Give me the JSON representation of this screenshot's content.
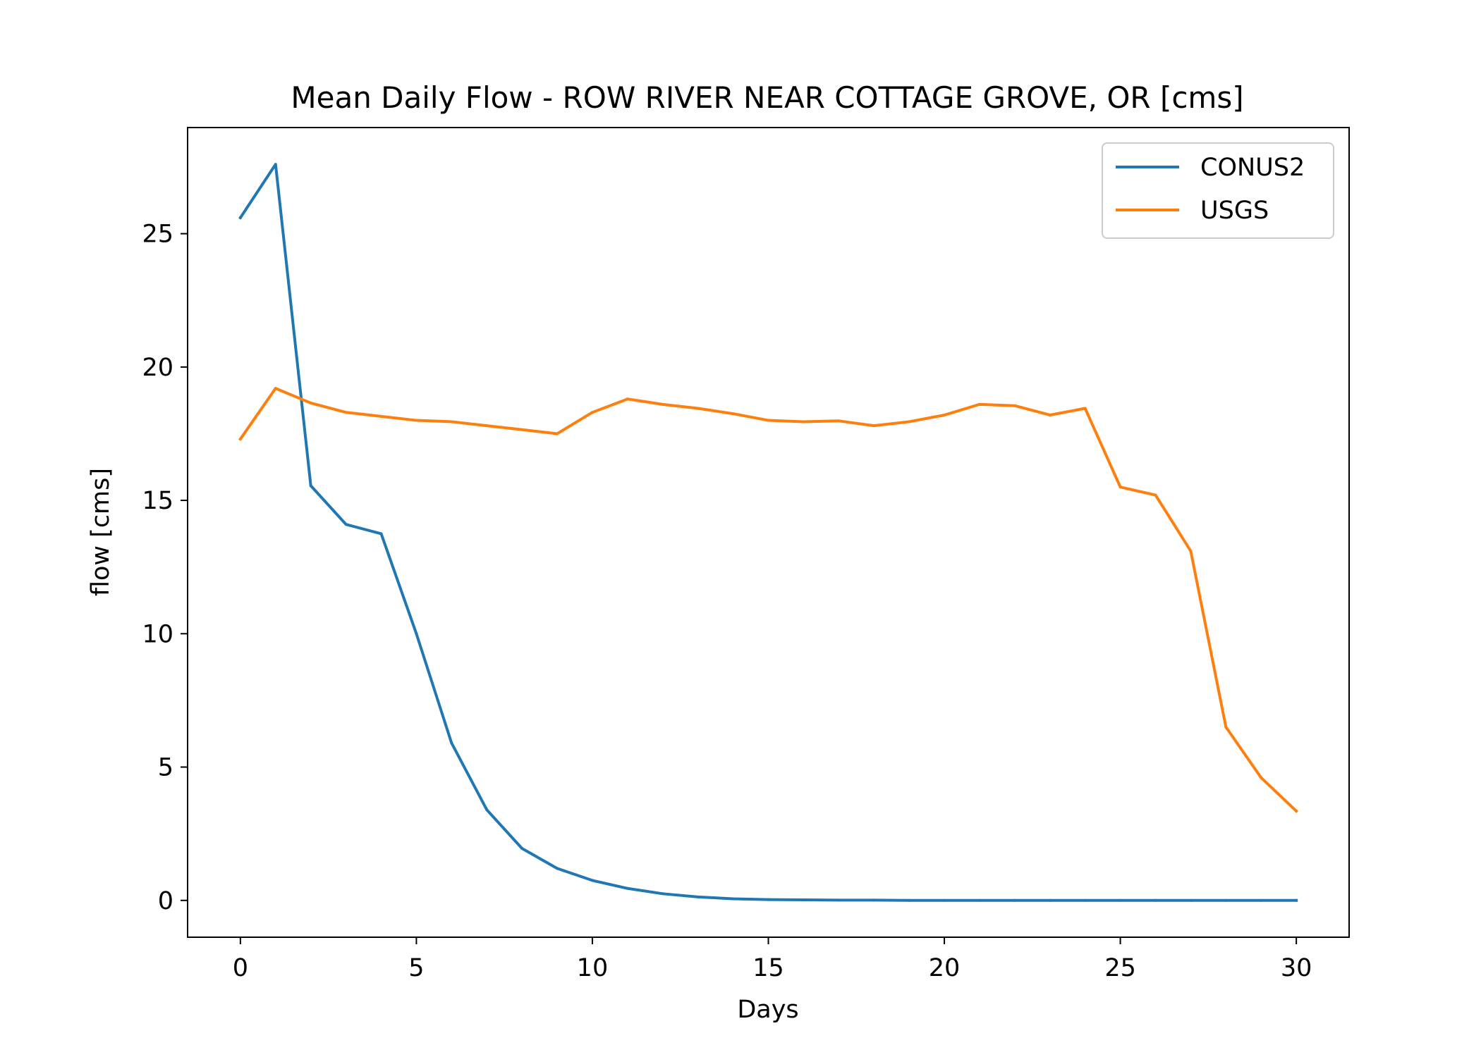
{
  "chart_data": {
    "type": "line",
    "title": "Mean Daily Flow - ROW RIVER NEAR COTTAGE GROVE, OR [cms]",
    "xlabel": "Days",
    "ylabel": "flow [cms]",
    "xlim": [
      -1.5,
      31.5
    ],
    "ylim": [
      -1.38,
      28.98
    ],
    "xticks": [
      0,
      5,
      10,
      15,
      20,
      25,
      30
    ],
    "yticks": [
      0,
      5,
      10,
      15,
      20,
      25
    ],
    "grid": false,
    "legend_position": "upper right",
    "x": [
      0,
      1,
      2,
      3,
      4,
      5,
      6,
      7,
      8,
      9,
      10,
      11,
      12,
      13,
      14,
      15,
      16,
      17,
      18,
      19,
      20,
      21,
      22,
      23,
      24,
      25,
      26,
      27,
      28,
      29,
      30
    ],
    "series": [
      {
        "name": "CONUS2",
        "color": "#1f77b4",
        "values": [
          25.6,
          27.6,
          15.55,
          14.1,
          13.75,
          10.0,
          5.9,
          3.4,
          1.95,
          1.2,
          0.75,
          0.45,
          0.25,
          0.13,
          0.06,
          0.03,
          0.02,
          0.01,
          0.01,
          0.0,
          0.0,
          0.0,
          0.0,
          0.0,
          0.0,
          0.0,
          0.0,
          0.0,
          0.0,
          0.0,
          0.0
        ]
      },
      {
        "name": "USGS",
        "color": "#ff7f0e",
        "values": [
          17.3,
          19.2,
          18.65,
          18.3,
          18.15,
          18.0,
          17.95,
          17.8,
          17.65,
          17.5,
          18.3,
          18.8,
          18.6,
          18.45,
          18.25,
          18.0,
          17.95,
          17.98,
          17.8,
          17.95,
          18.2,
          18.6,
          18.55,
          18.2,
          18.45,
          15.5,
          15.2,
          13.1,
          6.5,
          4.6,
          3.35
        ]
      }
    ]
  }
}
